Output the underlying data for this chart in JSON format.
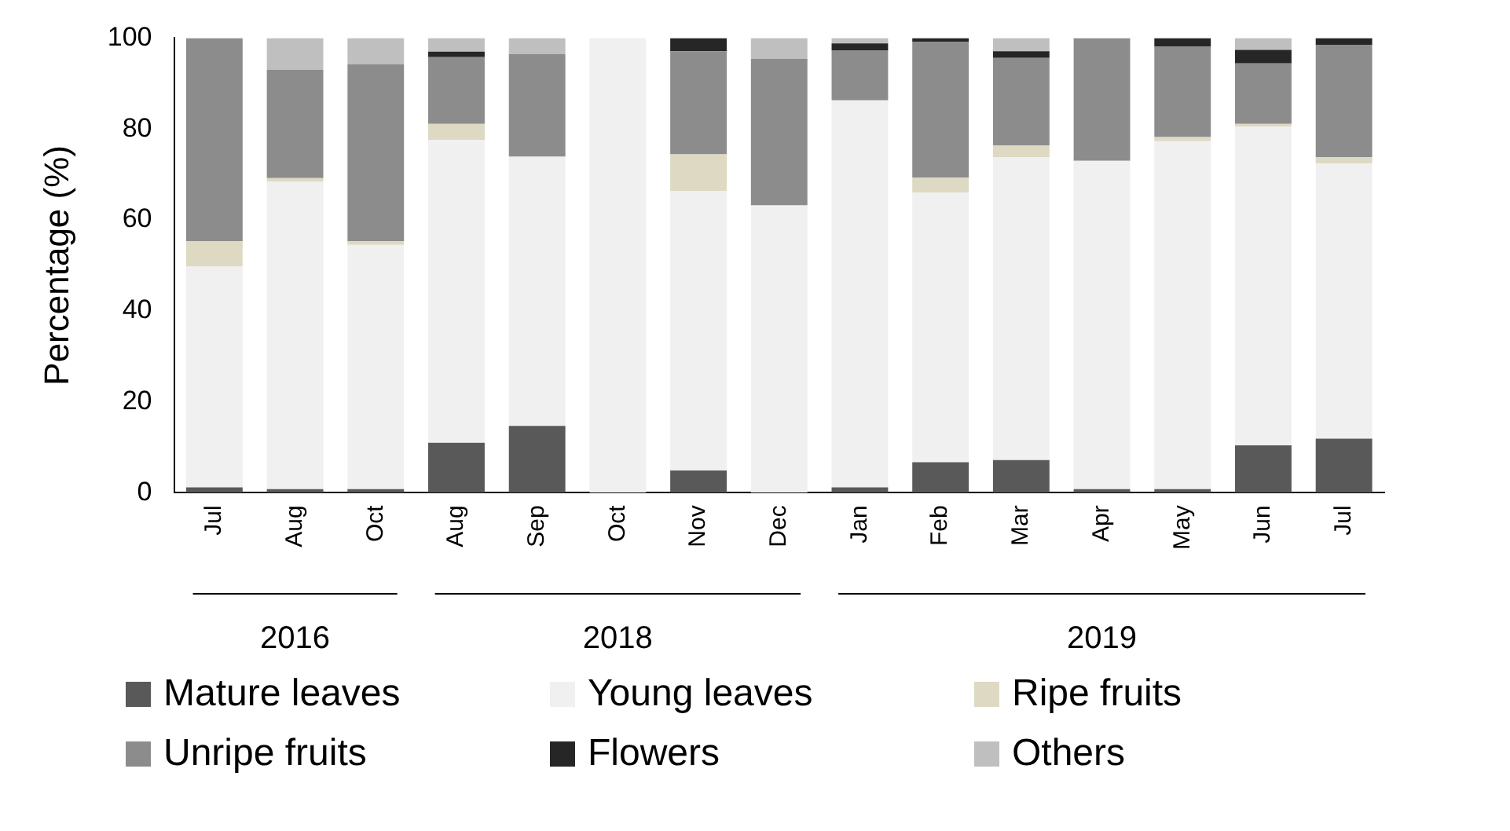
{
  "chart_data": {
    "type": "bar",
    "stacked": true,
    "ylabel": "Percentage (%)",
    "categories": [
      "Jul",
      "Aug",
      "Oct",
      "Aug",
      "Sep",
      "Oct",
      "Nov",
      "Dec",
      "Jan",
      "Feb",
      "Mar",
      "Apr",
      "May",
      "Jun",
      "Jul"
    ],
    "series": [
      {
        "name": "Mature leaves",
        "color": "#595959",
        "values": [
          1.2,
          0.8,
          0.8,
          11.0,
          14.7,
          0,
          4.9,
          0,
          1.2,
          6.7,
          7.2,
          0.8,
          0.8,
          10.4,
          11.9
        ]
      },
      {
        "name": "Young leaves",
        "color": "#f0f0f0",
        "values": [
          48.6,
          67.6,
          53.7,
          66.6,
          59.2,
          100,
          61.5,
          63.2,
          85.1,
          59.3,
          66.6,
          72.2,
          76.5,
          70.1,
          60.5
        ]
      },
      {
        "name": "Ripe fruits",
        "color": "#ddd9c3",
        "values": [
          5.5,
          0.8,
          0.8,
          3.5,
          0,
          0,
          8.0,
          0,
          0,
          3.3,
          2.6,
          0,
          0.9,
          0.6,
          1.4
        ]
      },
      {
        "name": "Unripe fruits",
        "color": "#8c8c8c",
        "values": [
          44.7,
          23.8,
          38.9,
          14.7,
          22.6,
          0,
          22.7,
          32.2,
          11.0,
          29.8,
          19.2,
          27.0,
          19.9,
          13.3,
          24.7
        ]
      },
      {
        "name": "Flowers",
        "color": "#262626",
        "values": [
          0,
          0,
          0,
          1.2,
          0,
          0,
          2.9,
          0,
          1.5,
          0.9,
          1.5,
          0,
          1.9,
          3.0,
          1.5
        ]
      },
      {
        "name": "Others",
        "color": "#bfbfbf",
        "values": [
          0,
          7.0,
          5.8,
          3.0,
          3.5,
          0,
          0,
          4.6,
          1.2,
          0,
          2.9,
          0,
          0,
          2.6,
          0
        ]
      }
    ],
    "annotations": [
      "2016",
      "2018",
      "2019"
    ],
    "ylim": [
      0,
      100
    ],
    "yticks": [
      0,
      20,
      40,
      60,
      80,
      100
    ],
    "grid": false,
    "legend": "bottom"
  }
}
